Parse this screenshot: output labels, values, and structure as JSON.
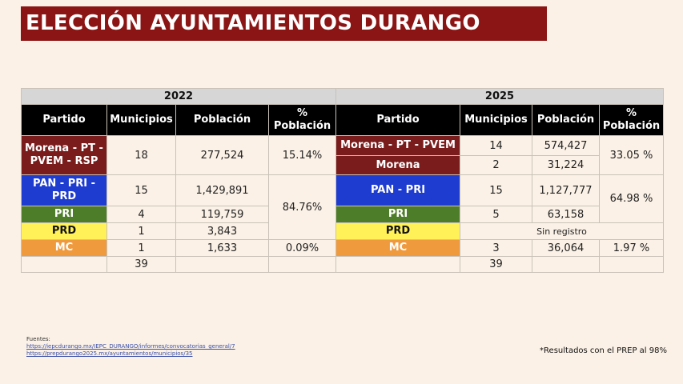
{
  "title": "ELECCIÓN AYUNTAMIENTOS DURANGO",
  "headers": {
    "year_2022": "2022",
    "year_2025": "2025",
    "partido": "Partido",
    "municipios": "Municipios",
    "poblacion": "Población",
    "pct_poblacion_1": "%",
    "pct_poblacion_2": "Población"
  },
  "rows_2022": [
    {
      "partido": "Morena - PT - PVEM - RSP",
      "municipios": "18",
      "poblacion": "277,524",
      "pct": "15.14%"
    },
    {
      "partido": "PAN - PRI - PRD",
      "municipios": "15",
      "poblacion": "1,429,891",
      "pct": "84.76%"
    },
    {
      "partido": "PRI",
      "municipios": "4",
      "poblacion": "119,759"
    },
    {
      "partido": "PRD",
      "municipios": "1",
      "poblacion": "3,843"
    },
    {
      "partido": "MC",
      "municipios": "1",
      "poblacion": "1,633",
      "pct": "0.09%"
    }
  ],
  "total_2022": "39",
  "rows_2025": [
    {
      "partido": "Morena - PT - PVEM",
      "municipios": "14",
      "poblacion": "574,427",
      "pct": "33.05 %"
    },
    {
      "partido": "Morena",
      "municipios": "2",
      "poblacion": "31,224"
    },
    {
      "partido": "PAN - PRI",
      "municipios": "15",
      "poblacion": "1,127,777",
      "pct": "64.98 %"
    },
    {
      "partido": "PRI",
      "municipios": "5",
      "poblacion": "63,158"
    },
    {
      "partido": "PRD",
      "sin_registro": "Sin registro"
    },
    {
      "partido": "MC",
      "municipios": "3",
      "poblacion": "36,064",
      "pct": "1.97 %"
    }
  ],
  "total_2025": "39",
  "footnote": {
    "label": "Fuentes:",
    "link1": "https://iepcdurango.mx/IEPC_DURANGO/informes/convocatorias_general/7",
    "link2": "https://prepdurango2025.mx/ayuntamientos/municipios/35"
  },
  "prep_note": "*Resultados con el PREP al 98%",
  "colors": {
    "title_bg": "#8b1414",
    "morena": "#7a1c1c",
    "pan": "#1e3ccf",
    "pri": "#4e7d2a",
    "prd": "#fff157",
    "mc": "#f09a3e",
    "background": "#fbf1e6"
  }
}
